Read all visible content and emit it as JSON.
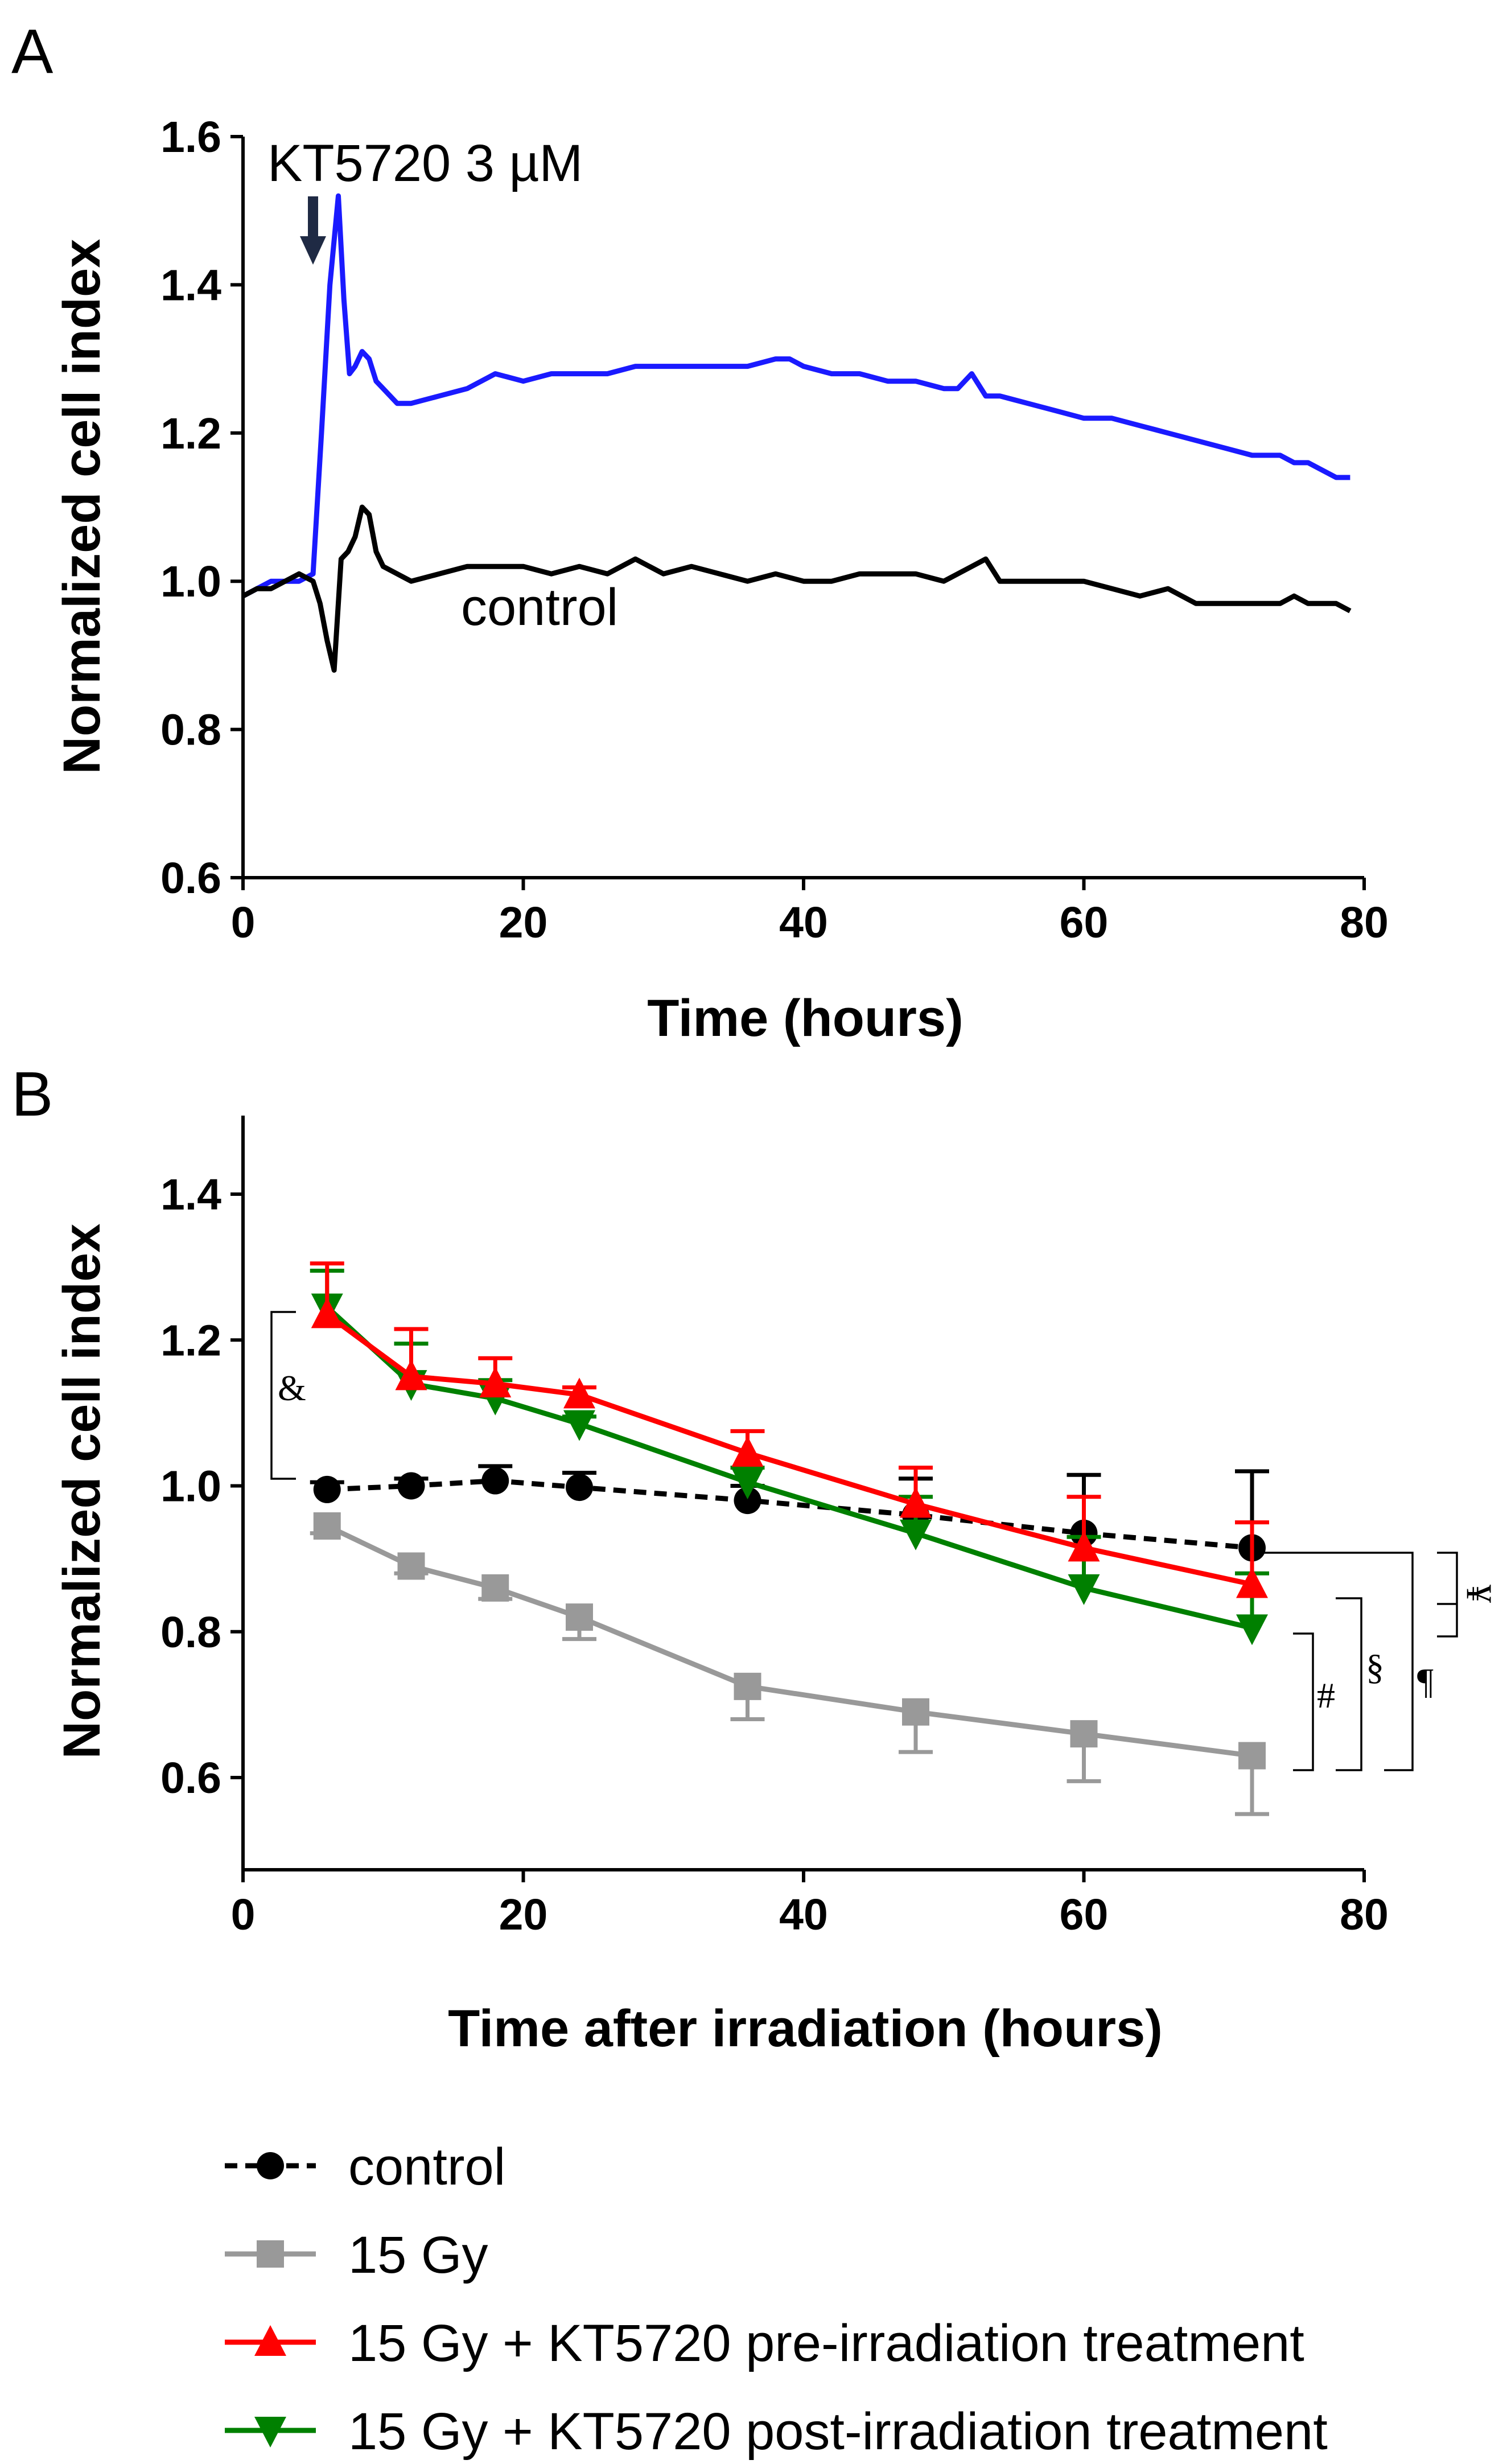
{
  "chart_data": [
    {
      "panel": "A",
      "type": "line",
      "xlabel": "Time (hours)",
      "ylabel": "Normalized cell index",
      "xlim": [
        0,
        80
      ],
      "ylim": [
        0.6,
        1.6
      ],
      "xticks": [
        "0",
        "20",
        "40",
        "60",
        "80"
      ],
      "yticks": [
        "0.6",
        "0.8",
        "1.0",
        "1.2",
        "1.4",
        "1.6"
      ],
      "annotations": [
        {
          "text": "KT5720 3 µM",
          "arrow_at_x": 5
        },
        {
          "text": "control"
        }
      ],
      "series": [
        {
          "color": "#1a1aff",
          "x": [
            0,
            1,
            2,
            3,
            4,
            5,
            5.6,
            6.2,
            6.8,
            7.2,
            7.6,
            8,
            8.5,
            9,
            9.5,
            10,
            11,
            12,
            14,
            16,
            18,
            20,
            22,
            24,
            26,
            28,
            30,
            32,
            34,
            36,
            38,
            39,
            40,
            42,
            44,
            46,
            48,
            50,
            51,
            52,
            53,
            54,
            56,
            58,
            60,
            62,
            64,
            66,
            68,
            70,
            72,
            74,
            75,
            76,
            77,
            78,
            79
          ],
          "y": [
            0.98,
            0.99,
            1.0,
            1.0,
            1.0,
            1.01,
            1.2,
            1.4,
            1.52,
            1.38,
            1.28,
            1.29,
            1.31,
            1.3,
            1.27,
            1.26,
            1.24,
            1.24,
            1.25,
            1.26,
            1.28,
            1.27,
            1.28,
            1.28,
            1.28,
            1.29,
            1.29,
            1.29,
            1.29,
            1.29,
            1.3,
            1.3,
            1.29,
            1.28,
            1.28,
            1.27,
            1.27,
            1.26,
            1.26,
            1.28,
            1.25,
            1.25,
            1.24,
            1.23,
            1.22,
            1.22,
            1.21,
            1.2,
            1.19,
            1.18,
            1.17,
            1.17,
            1.16,
            1.16,
            1.15,
            1.14,
            1.14
          ]
        },
        {
          "name": "control",
          "color": "#000000",
          "x": [
            0,
            1,
            2,
            3,
            4,
            5,
            5.5,
            6,
            6.5,
            7,
            7.5,
            8,
            8.5,
            9,
            9.5,
            10,
            11,
            12,
            14,
            16,
            18,
            20,
            22,
            24,
            26,
            28,
            30,
            32,
            34,
            36,
            38,
            40,
            42,
            44,
            46,
            48,
            50,
            52,
            53,
            54,
            56,
            58,
            60,
            62,
            64,
            66,
            68,
            70,
            72,
            74,
            75,
            76,
            77,
            78,
            79
          ],
          "y": [
            0.98,
            0.99,
            0.99,
            1.0,
            1.01,
            1.0,
            0.97,
            0.92,
            0.88,
            1.03,
            1.04,
            1.06,
            1.1,
            1.09,
            1.04,
            1.02,
            1.01,
            1.0,
            1.01,
            1.02,
            1.02,
            1.02,
            1.01,
            1.02,
            1.01,
            1.03,
            1.01,
            1.02,
            1.01,
            1.0,
            1.01,
            1.0,
            1.0,
            1.01,
            1.01,
            1.01,
            1.0,
            1.02,
            1.03,
            1.0,
            1.0,
            1.0,
            1.0,
            0.99,
            0.98,
            0.99,
            0.97,
            0.97,
            0.97,
            0.97,
            0.98,
            0.97,
            0.97,
            0.97,
            0.96
          ]
        }
      ]
    },
    {
      "panel": "B",
      "type": "line",
      "xlabel": "Time after irradiation (hours)",
      "ylabel": "Normalized cell index",
      "xlim": [
        0,
        80
      ],
      "ylim": [
        0.5,
        1.5
      ],
      "xticks": [
        "0",
        "20",
        "40",
        "60",
        "80"
      ],
      "yticks": [
        "0.6",
        "0.8",
        "1.0",
        "1.2",
        "1.4"
      ],
      "x": [
        6,
        12,
        18,
        24,
        36,
        48,
        60,
        72
      ],
      "series": [
        {
          "name": "control",
          "color": "#000000",
          "marker": "circle",
          "dashed": true,
          "values": [
            0.995,
            1.0,
            1.007,
            0.998,
            0.98,
            0.96,
            0.935,
            0.915
          ],
          "errors": [
            0.01,
            0.01,
            0.02,
            0.02,
            0.02,
            0.05,
            0.08,
            0.105
          ]
        },
        {
          "name": "15 Gy",
          "color": "#999999",
          "marker": "square",
          "dashed": false,
          "values": [
            0.945,
            0.89,
            0.86,
            0.82,
            0.725,
            0.69,
            0.66,
            0.63
          ],
          "errors": [
            0.01,
            0.01,
            0.015,
            0.03,
            0.045,
            0.055,
            0.065,
            0.08
          ]
        },
        {
          "name": "15 Gy + KT5720 pre-irradiation treatment",
          "color": "#ff0000",
          "marker": "triangle-up",
          "dashed": false,
          "values": [
            1.235,
            1.15,
            1.14,
            1.125,
            1.045,
            0.975,
            0.915,
            0.865
          ],
          "errors": [
            0.07,
            0.065,
            0.035,
            0.01,
            0.03,
            0.05,
            0.07,
            0.085
          ]
        },
        {
          "name": "15 Gy + KT5720 post-irradiation treatment",
          "color": "#008000",
          "marker": "triangle-down",
          "dashed": false,
          "values": [
            1.245,
            1.14,
            1.12,
            1.085,
            1.005,
            0.935,
            0.86,
            0.805
          ],
          "errors": [
            0.05,
            0.055,
            0.025,
            0.01,
            0.02,
            0.05,
            0.07,
            0.075
          ]
        }
      ],
      "significance": [
        "&",
        "#",
        "§",
        "¶",
        "¥"
      ]
    }
  ],
  "panel_labels": [
    "A",
    "B"
  ]
}
